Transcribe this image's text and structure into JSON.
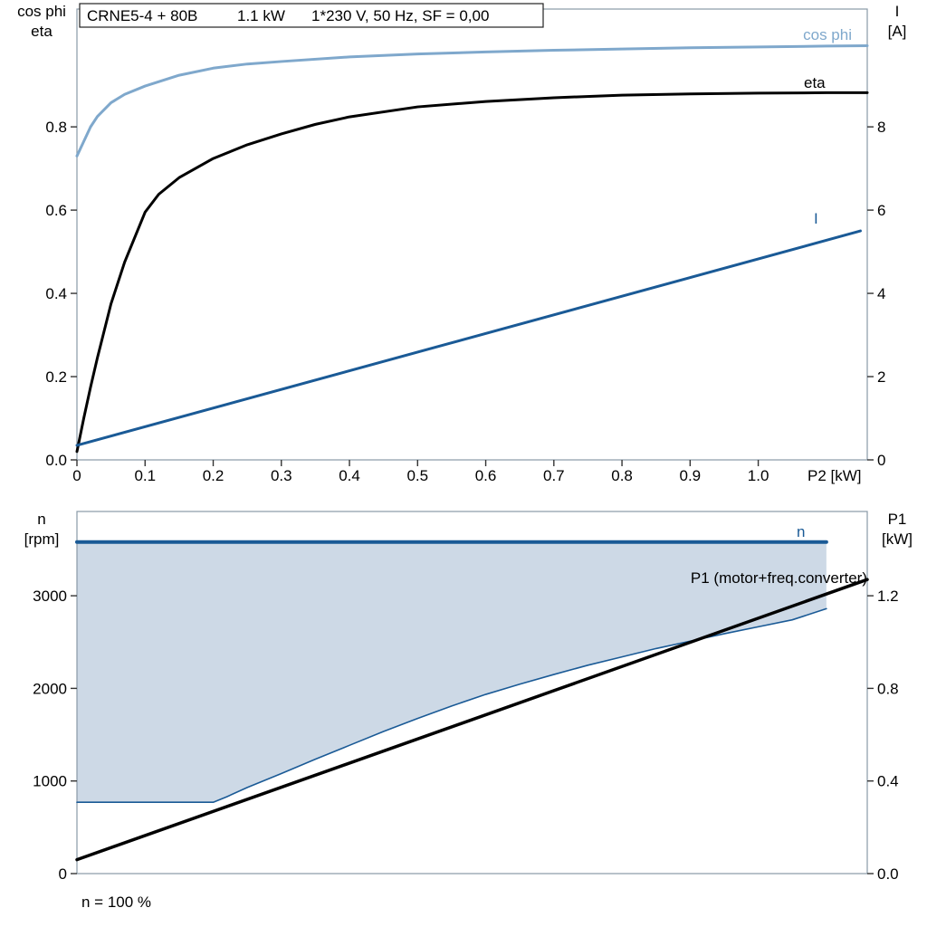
{
  "title_box": {
    "model": "CRNE5-4 + 80B",
    "power": "1.1 kW",
    "supply": "1*230 V, 50 Hz, SF = 0,00"
  },
  "colors": {
    "dark_blue": "#1a5a96",
    "light_blue": "#7fa8cc",
    "fill_blue": "#cdd9e6",
    "black": "#000000",
    "frame": "#8899a6",
    "tick": "#333333"
  },
  "top_chart": {
    "left_axis_title": {
      "line1": "cos phi",
      "line2": "eta"
    },
    "right_axis_title": {
      "line1": "I",
      "line2": "[A]"
    },
    "x_axis_label": "P2 [kW]",
    "curve_labels": {
      "cos_phi": "cos phi",
      "eta": "eta",
      "current": "I"
    }
  },
  "bottom_chart": {
    "left_axis_title": {
      "line1": "n",
      "line2": "[rpm]"
    },
    "right_axis_title": {
      "line1": "P1",
      "line2": "[kW]"
    },
    "curve_labels": {
      "n": "n",
      "p1": "P1 (motor+freq.converter)"
    },
    "footnote": "n = 100 %"
  },
  "chart_data": [
    {
      "id": "top",
      "type": "line",
      "title": "CRNE5-4 + 80B  1.1 kW  1*230 V, 50 Hz, SF = 0,00",
      "xlabel": "P2 [kW]",
      "x_range": [
        0,
        1.16
      ],
      "x_ticks": [
        "0",
        "0.1",
        "0.2",
        "0.3",
        "0.4",
        "0.5",
        "0.6",
        "0.7",
        "0.8",
        "0.9",
        "1.0"
      ],
      "y_left": {
        "label": "cos phi / eta",
        "range": [
          0,
          1.083
        ],
        "ticks": [
          "0.0",
          "0.2",
          "0.4",
          "0.6",
          "0.8"
        ]
      },
      "y_right": {
        "label": "I [A]",
        "range": [
          0,
          10.83
        ],
        "ticks": [
          "0",
          "2",
          "4",
          "6",
          "8"
        ]
      },
      "grid": false,
      "series": [
        {
          "name": "cos phi",
          "axis": "left",
          "color": "light_blue",
          "width": 3,
          "points": [
            [
              0,
              0.73
            ],
            [
              0.01,
              0.765
            ],
            [
              0.02,
              0.8
            ],
            [
              0.03,
              0.825
            ],
            [
              0.05,
              0.858
            ],
            [
              0.07,
              0.878
            ],
            [
              0.1,
              0.898
            ],
            [
              0.15,
              0.924
            ],
            [
              0.2,
              0.941
            ],
            [
              0.25,
              0.951
            ],
            [
              0.3,
              0.957
            ],
            [
              0.4,
              0.968
            ],
            [
              0.5,
              0.975
            ],
            [
              0.6,
              0.98
            ],
            [
              0.7,
              0.984
            ],
            [
              0.8,
              0.987
            ],
            [
              0.9,
              0.99
            ],
            [
              1.0,
              0.992
            ],
            [
              1.1,
              0.994
            ],
            [
              1.16,
              0.995
            ]
          ]
        },
        {
          "name": "eta",
          "axis": "left",
          "color": "black",
          "width": 3,
          "points": [
            [
              0,
              0.02
            ],
            [
              0.01,
              0.1
            ],
            [
              0.02,
              0.175
            ],
            [
              0.03,
              0.245
            ],
            [
              0.05,
              0.375
            ],
            [
              0.07,
              0.475
            ],
            [
              0.1,
              0.595
            ],
            [
              0.12,
              0.638
            ],
            [
              0.15,
              0.678
            ],
            [
              0.2,
              0.724
            ],
            [
              0.25,
              0.757
            ],
            [
              0.3,
              0.783
            ],
            [
              0.35,
              0.806
            ],
            [
              0.4,
              0.824
            ],
            [
              0.5,
              0.848
            ],
            [
              0.6,
              0.861
            ],
            [
              0.7,
              0.87
            ],
            [
              0.8,
              0.876
            ],
            [
              0.9,
              0.879
            ],
            [
              1.0,
              0.881
            ],
            [
              1.1,
              0.882
            ],
            [
              1.16,
              0.882
            ]
          ]
        },
        {
          "name": "I",
          "axis": "right",
          "color": "dark_blue",
          "width": 3,
          "points": [
            [
              0,
              0.35
            ],
            [
              1.15,
              5.5
            ]
          ]
        }
      ]
    },
    {
      "id": "bottom",
      "type": "line",
      "title": "Speed range and power input",
      "xlabel": "",
      "x_range": [
        0,
        1.16
      ],
      "x_ticks": [],
      "y_left": {
        "label": "n [rpm]",
        "range": [
          0,
          3910
        ],
        "ticks": [
          "0",
          "1000",
          "2000",
          "3000"
        ]
      },
      "y_right": {
        "label": "P1 [kW]",
        "range": [
          0,
          1.564
        ],
        "ticks": [
          "0.0",
          "0.4",
          "0.8",
          "1.2"
        ]
      },
      "grid": false,
      "fill": {
        "lower_series": "speed range min",
        "upper_series": "n",
        "color": "fill_blue"
      },
      "series": [
        {
          "name": "speed range min",
          "axis": "left",
          "color": "dark_blue",
          "width": 1.6,
          "points": [
            [
              0,
              770
            ],
            [
              0.2,
              770
            ],
            [
              0.22,
              830
            ],
            [
              0.25,
              930
            ],
            [
              0.3,
              1080
            ],
            [
              0.35,
              1235
            ],
            [
              0.4,
              1385
            ],
            [
              0.45,
              1535
            ],
            [
              0.5,
              1675
            ],
            [
              0.55,
              1810
            ],
            [
              0.6,
              1935
            ],
            [
              0.65,
              2045
            ],
            [
              0.7,
              2150
            ],
            [
              0.75,
              2250
            ],
            [
              0.8,
              2340
            ],
            [
              0.85,
              2430
            ],
            [
              0.9,
              2510
            ],
            [
              0.95,
              2590
            ],
            [
              1.0,
              2665
            ],
            [
              1.05,
              2740
            ],
            [
              1.1,
              2860
            ]
          ]
        },
        {
          "name": "P1 (motor+freq.converter)",
          "axis": "right",
          "color": "black",
          "width": 3.5,
          "points": [
            [
              0,
              0.06
            ],
            [
              1.16,
              1.27
            ]
          ]
        },
        {
          "name": "n",
          "axis": "left",
          "color": "dark_blue",
          "width": 4,
          "points": [
            [
              0,
              3580
            ],
            [
              1.1,
              3580
            ]
          ]
        }
      ]
    }
  ]
}
